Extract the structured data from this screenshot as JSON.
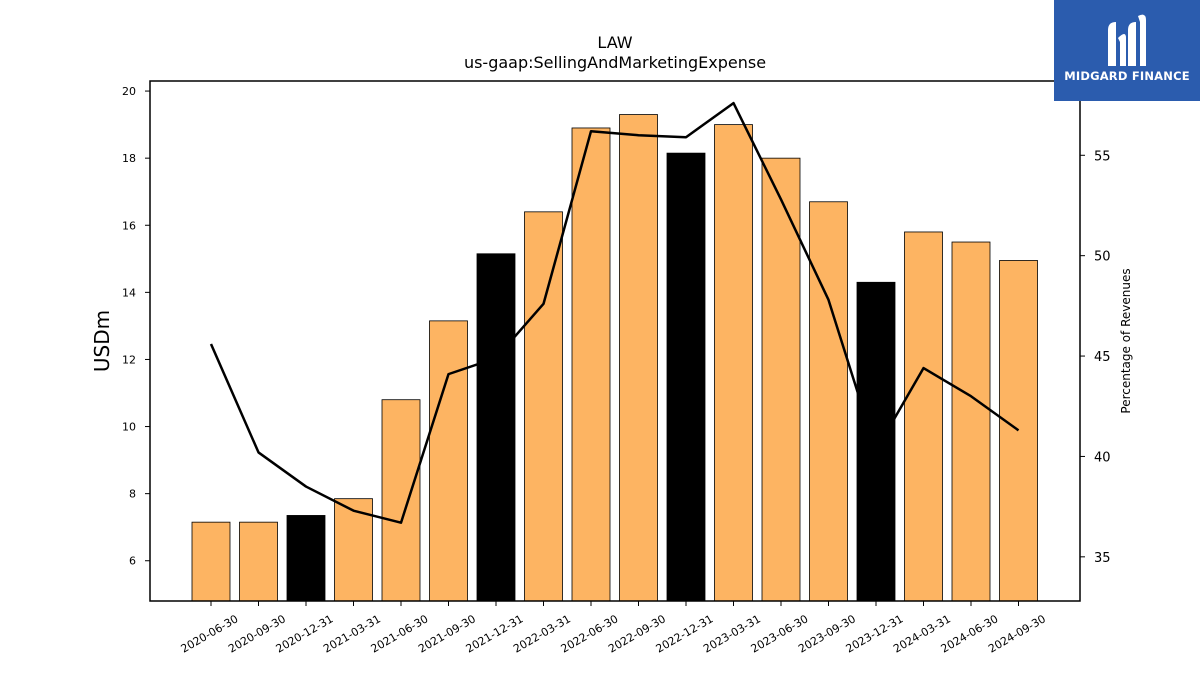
{
  "chart_data": {
    "type": "bar",
    "title": "LAW",
    "subtitle": "us-gaap:SellingAndMarketingExpense",
    "ylabel": "USDm",
    "y2label": "Percentage of Revenues",
    "ylim": [
      4.8,
      20.3
    ],
    "y2lim": [
      32.8,
      58.7
    ],
    "yticks": [
      6,
      8,
      10,
      12,
      14,
      16,
      18,
      20
    ],
    "y2ticks": [
      35,
      40,
      45,
      50,
      55
    ],
    "categories": [
      "2020-06-30",
      "2020-09-30",
      "2020-12-31",
      "2021-03-31",
      "2021-06-30",
      "2021-09-30",
      "2021-12-31",
      "2022-03-31",
      "2022-06-30",
      "2022-09-30",
      "2022-12-31",
      "2023-03-31",
      "2023-06-30",
      "2023-09-30",
      "2023-12-31",
      "2024-03-31",
      "2024-06-30",
      "2024-09-30"
    ],
    "series": [
      {
        "kind": "bar",
        "values": [
          7.15,
          7.15,
          7.35,
          7.85,
          10.8,
          13.15,
          15.15,
          16.4,
          18.9,
          19.3,
          18.15,
          19.0,
          18.0,
          16.7,
          14.3,
          15.8,
          15.5,
          14.95
        ],
        "colors": [
          "#fdb462",
          "#fdb462",
          "#000000",
          "#fdb462",
          "#fdb462",
          "#fdb462",
          "#000000",
          "#fdb462",
          "#fdb462",
          "#fdb462",
          "#000000",
          "#fdb462",
          "#fdb462",
          "#fdb462",
          "#000000",
          "#fdb462",
          "#fdb462",
          "#fdb462"
        ]
      },
      {
        "kind": "line",
        "axis": "right",
        "color": "#000000",
        "values": [
          45.6,
          40.2,
          38.5,
          37.3,
          36.7,
          44.1,
          44.9,
          47.6,
          56.2,
          56.0,
          55.9,
          57.6,
          52.8,
          47.8,
          40.3,
          44.4,
          43.0,
          41.3
        ]
      }
    ],
    "grid": false,
    "legend": "none"
  },
  "logo": {
    "text": "MIDGARD FINANCE",
    "background": "#2b5cae"
  }
}
